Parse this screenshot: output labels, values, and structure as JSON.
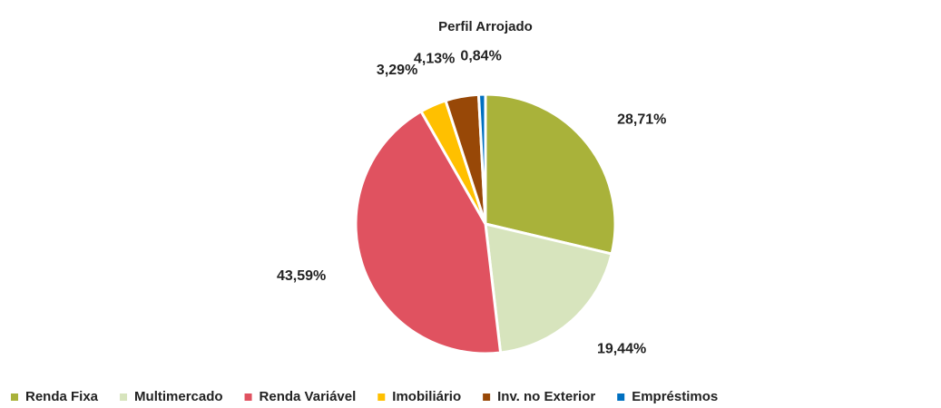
{
  "chart_data": {
    "type": "pie",
    "title": "Perfil Arrojado",
    "categories": [
      "Renda Fixa",
      "Multimercado",
      "Renda Variável",
      "Imobiliário",
      "Inv. no Exterior",
      "Empréstimos"
    ],
    "values": [
      28.71,
      19.44,
      43.59,
      3.29,
      4.13,
      0.84
    ],
    "value_labels": [
      "28,71%",
      "19,44%",
      "43,59%",
      "3,29%",
      "4,13%",
      "0,84%"
    ],
    "colors": [
      "#a9b23a",
      "#d7e4bd",
      "#e05260",
      "#ffc000",
      "#984807",
      "#0070c0"
    ],
    "legend": "bottom"
  }
}
